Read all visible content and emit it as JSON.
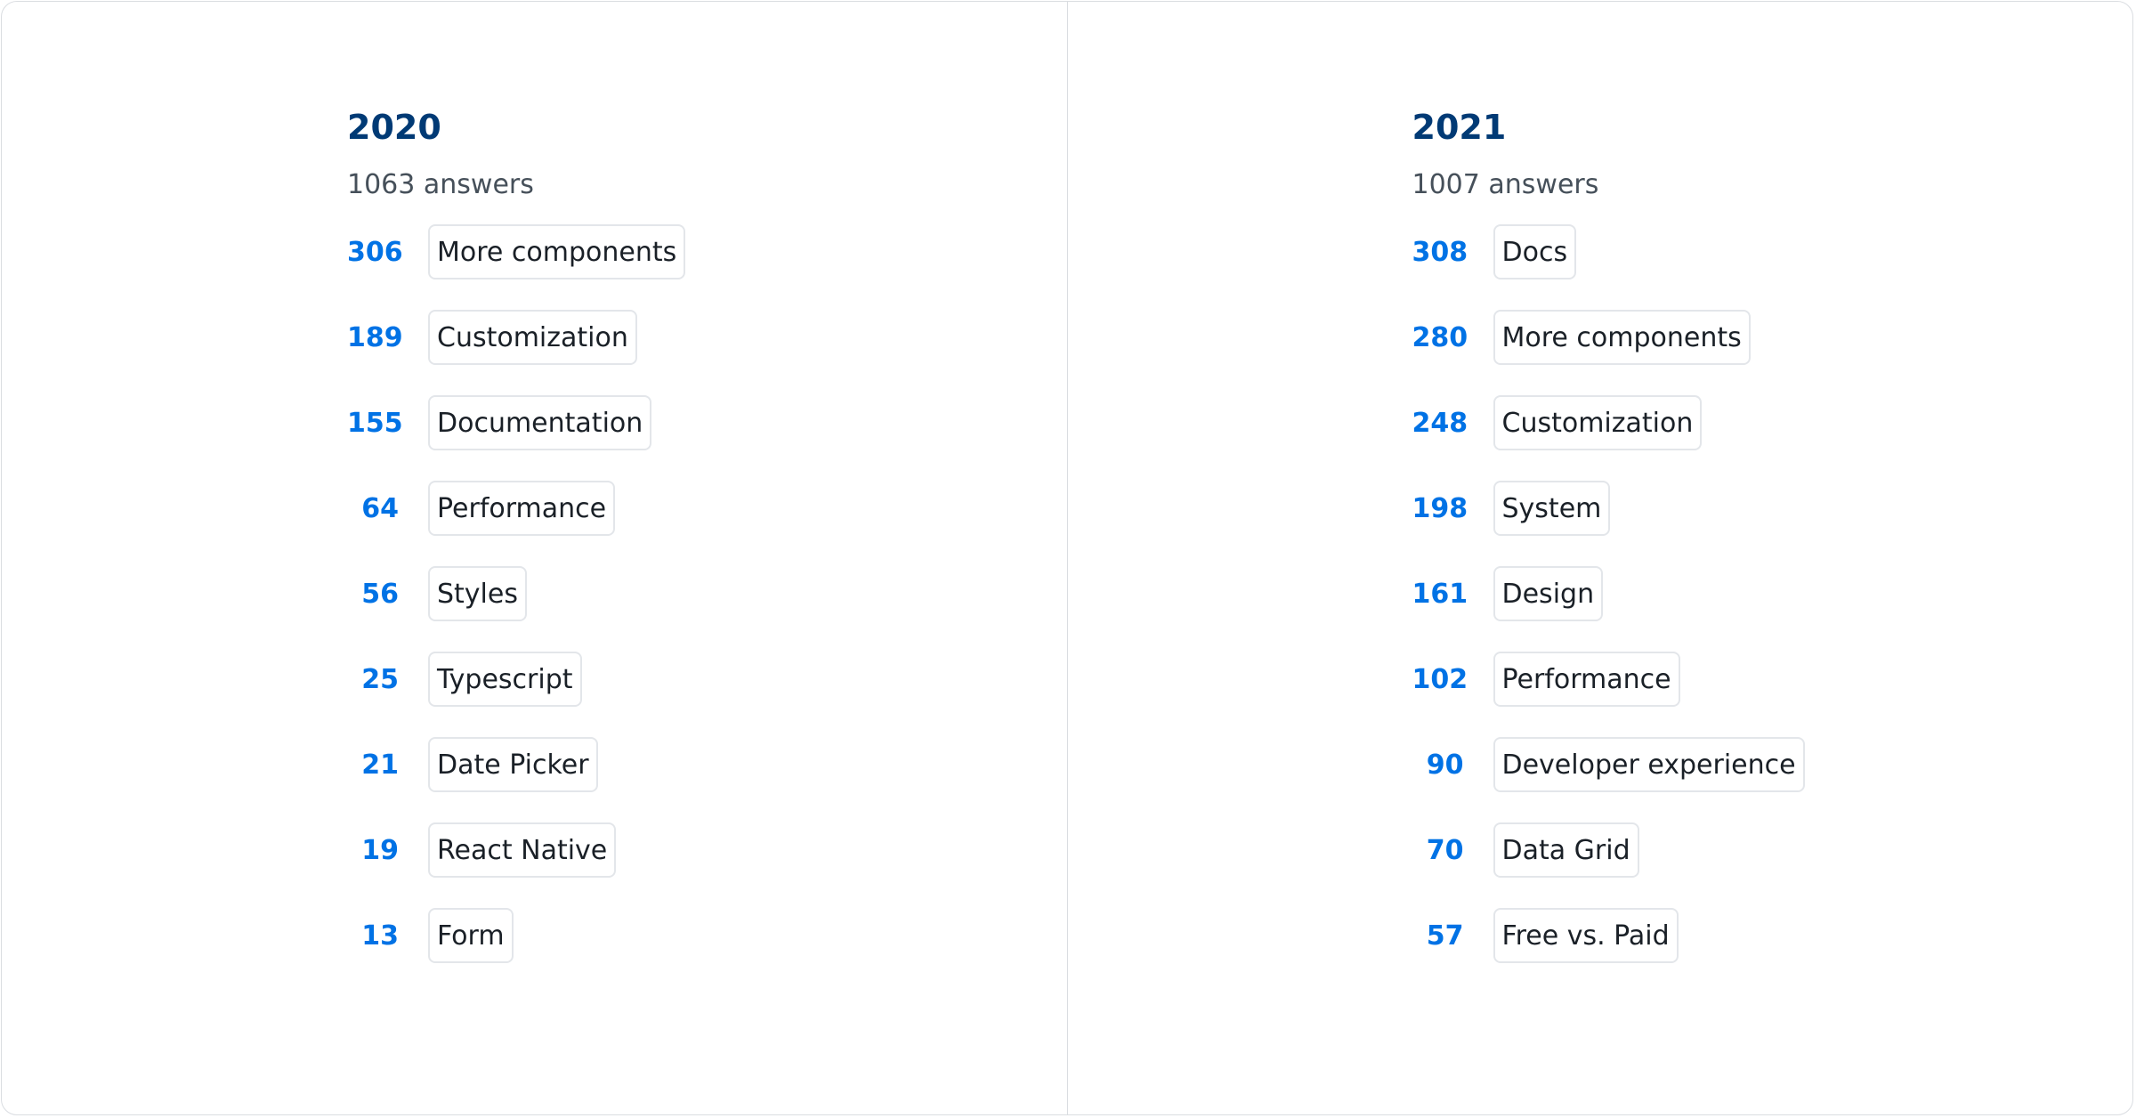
{
  "columns": [
    {
      "year": "2020",
      "answers": "1063 answers",
      "items": [
        {
          "count": "306",
          "label": "More components"
        },
        {
          "count": "189",
          "label": "Customization"
        },
        {
          "count": "155",
          "label": "Documentation"
        },
        {
          "count": "64",
          "label": "Performance"
        },
        {
          "count": "56",
          "label": "Styles"
        },
        {
          "count": "25",
          "label": "Typescript"
        },
        {
          "count": "21",
          "label": "Date Picker"
        },
        {
          "count": "19",
          "label": "React Native"
        },
        {
          "count": "13",
          "label": "Form"
        }
      ]
    },
    {
      "year": "2021",
      "answers": "1007 answers",
      "items": [
        {
          "count": "308",
          "label": "Docs"
        },
        {
          "count": "280",
          "label": "More components"
        },
        {
          "count": "248",
          "label": "Customization"
        },
        {
          "count": "198",
          "label": "System"
        },
        {
          "count": "161",
          "label": "Design"
        },
        {
          "count": "102",
          "label": "Performance"
        },
        {
          "count": "90",
          "label": "Developer experience"
        },
        {
          "count": "70",
          "label": "Data Grid"
        },
        {
          "count": "57",
          "label": "Free vs. Paid"
        }
      ]
    }
  ],
  "colors": {
    "title": "#003a75",
    "count": "#0072e5",
    "subtitle": "#46505a"
  }
}
